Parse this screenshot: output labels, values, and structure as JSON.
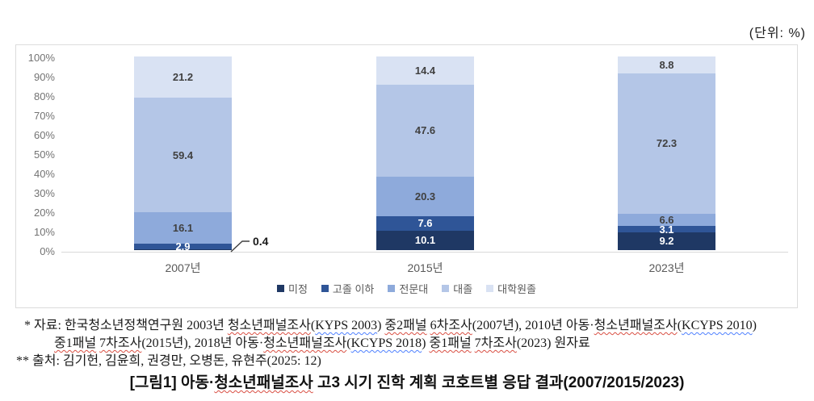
{
  "unit_label": "(단위:  %)",
  "chart_data": {
    "type": "bar",
    "stacked": true,
    "orientation": "vertical",
    "categories": [
      "2007년",
      "2015년",
      "2023년"
    ],
    "series": [
      {
        "name": "미정",
        "color": "#1F3864",
        "label_color": "#ffffff",
        "values": [
          0.4,
          10.1,
          9.2
        ],
        "labels": [
          null,
          "10.1",
          "9.2"
        ]
      },
      {
        "name": "고졸 이하",
        "color": "#2F5597",
        "label_color": "#ffffff",
        "values": [
          2.9,
          7.6,
          3.1
        ],
        "labels": [
          "2.9",
          "7.6",
          "3.1"
        ]
      },
      {
        "name": "전문대",
        "color": "#8EAADB",
        "label_color": "#404040",
        "values": [
          16.1,
          20.3,
          6.6
        ],
        "labels": [
          "16.1",
          "20.3",
          "6.6"
        ]
      },
      {
        "name": "대졸",
        "color": "#B4C6E7",
        "label_color": "#404040",
        "values": [
          59.4,
          47.6,
          72.3
        ],
        "labels": [
          "59.4",
          "47.6",
          "72.3"
        ]
      },
      {
        "name": "대학원졸",
        "color": "#D9E2F3",
        "label_color": "#404040",
        "values": [
          21.2,
          14.4,
          8.8
        ],
        "labels": [
          "21.2",
          "14.4",
          "8.8"
        ]
      }
    ],
    "y_ticks": [
      "100%",
      "90%",
      "80%",
      "70%",
      "60%",
      "50%",
      "40%",
      "30%",
      "20%",
      "10%",
      "0%"
    ],
    "ylim": [
      0,
      100
    ],
    "gridlines": false,
    "legend_position": "bottom",
    "callout": {
      "series": "미정",
      "category": "2007년",
      "label": "0.4"
    }
  },
  "footnotes": [
    {
      "segments": [
        {
          "t": "* 자료: 한국청소년정책연구원 2003년 "
        },
        {
          "t": "청소년패널조사",
          "u": "red"
        },
        {
          "t": "("
        },
        {
          "t": "KYPS 2003",
          "u": "blue"
        },
        {
          "t": ") "
        },
        {
          "t": "중2패널",
          "u": "red"
        },
        {
          "t": " "
        },
        {
          "t": "6차조사",
          "u": "red"
        },
        {
          "t": "(2007년), 2010년 아동·"
        },
        {
          "t": "청소년패널조사",
          "u": "red"
        },
        {
          "t": "("
        },
        {
          "t": "KCYPS 2010",
          "u": "blue"
        },
        {
          "t": ")"
        }
      ]
    },
    {
      "segments": [
        {
          "t": "중1패널",
          "u": "red"
        },
        {
          "t": " "
        },
        {
          "t": "7차조사",
          "u": "red"
        },
        {
          "t": "(2015년), 2018년 아동·"
        },
        {
          "t": "청소년패널조사",
          "u": "red"
        },
        {
          "t": "("
        },
        {
          "t": "KCYPS 2018",
          "u": "blue"
        },
        {
          "t": ") "
        },
        {
          "t": "중1패널",
          "u": "red"
        },
        {
          "t": " "
        },
        {
          "t": "7차조사",
          "u": "red"
        },
        {
          "t": "(2023) 원자료"
        }
      ]
    },
    {
      "segments": [
        {
          "t": "** 출처: 김기헌, 김윤희, 권경만, 오병돈, 유현주(2025: 12)"
        }
      ]
    }
  ],
  "caption_segments": [
    {
      "t": "[그림1] 아동·"
    },
    {
      "t": "청소년패널조사",
      "u": "red"
    },
    {
      "t": " 고3 시기 진학 계획 코호트별 응답 결과(2007/2015/2023)"
    }
  ]
}
